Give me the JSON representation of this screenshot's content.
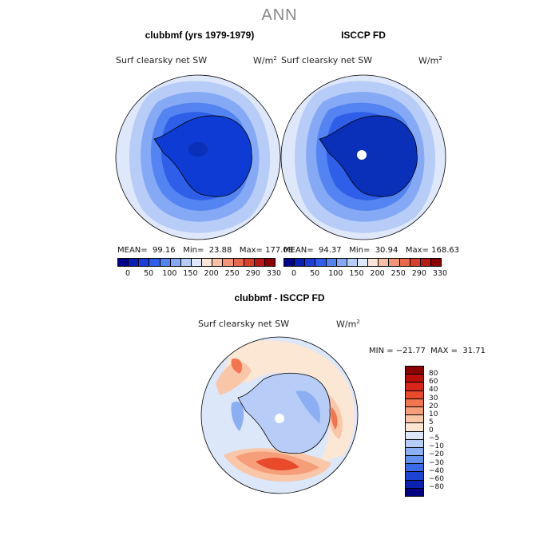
{
  "super_title": "ANN",
  "panels": [
    {
      "title": "clubbmf (yrs 1979-1979)",
      "variable": "Surf clearsky net SW",
      "units_base": "W/m",
      "units_exp": "2",
      "mean_label": "MEAN=",
      "mean": "99.16",
      "min_label": "Min=",
      "min": "23.88",
      "max_label": "Max=",
      "max": "177.08"
    },
    {
      "title": "ISCCP FD",
      "variable": "Surf clearsky net SW",
      "units_base": "W/m",
      "units_exp": "2",
      "mean_label": "MEAN=",
      "mean": "94.37",
      "min_label": "Min=",
      "min": "30.94",
      "max_label": "Max=",
      "max": "168.63"
    }
  ],
  "field_colorbar": {
    "colors": [
      "#00008b",
      "#0a1fb4",
      "#1d3fd8",
      "#2f5fe8",
      "#5484f2",
      "#86a9f5",
      "#b7cdf7",
      "#dfe8fb",
      "#fbe5d8",
      "#f7c1a6",
      "#f29476",
      "#e86a4e",
      "#d9402c",
      "#b81a14",
      "#8a0000"
    ],
    "tick_labels": [
      "0",
      "50",
      "100",
      "150",
      "200",
      "250",
      "290",
      "330"
    ]
  },
  "diff_panel": {
    "title": "clubbmf - ISCCP FD",
    "variable": "Surf clearsky net SW",
    "units_base": "W/m",
    "units_exp": "2",
    "minmax": "MIN = −21.77  MAX =  31.71"
  },
  "diff_colorbar": {
    "colors": [
      "#8b0000",
      "#b80f0a",
      "#d8261a",
      "#ea4a2c",
      "#f27550",
      "#f69e7a",
      "#f9c6a8",
      "#fce6d4",
      "#dce7fa",
      "#b7cdf7",
      "#8caff4",
      "#628ff0",
      "#3a6ae8",
      "#1c43d4",
      "#0b22b0",
      "#000080"
    ],
    "tick_labels": [
      "80",
      "60",
      "40",
      "30",
      "20",
      "10",
      "5",
      "0",
      "−5",
      "−10",
      "−20",
      "−30",
      "−40",
      "−60",
      "−80"
    ]
  }
}
